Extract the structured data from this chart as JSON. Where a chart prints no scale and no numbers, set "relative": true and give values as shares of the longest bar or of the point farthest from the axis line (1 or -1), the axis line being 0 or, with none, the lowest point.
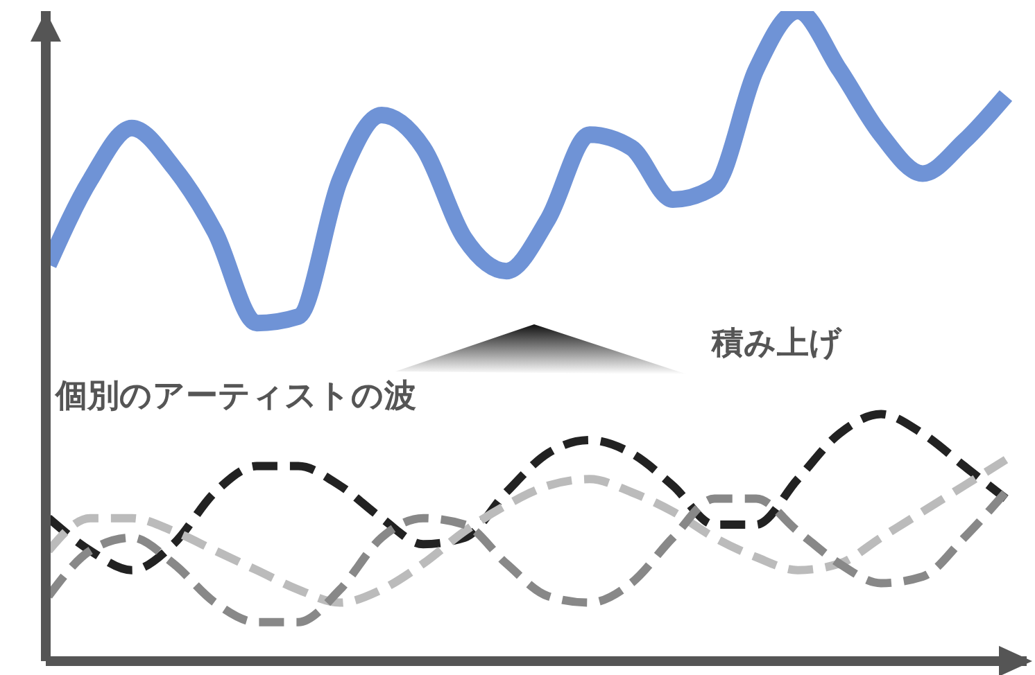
{
  "chart_data": {
    "type": "line",
    "relative": true,
    "categories": [
      null,
      null,
      null,
      null,
      null,
      null,
      null,
      null,
      null,
      null,
      null,
      null,
      null,
      null,
      null,
      null,
      null,
      null,
      null,
      null,
      null,
      null,
      null,
      null
    ],
    "series": [
      {
        "color": "#6f93d6",
        "line_style": "solid",
        "values": [
          0.61,
          0.74,
          0.82,
          0.76,
          0.66,
          0.52,
          0.53,
          0.74,
          0.84,
          0.79,
          0.65,
          0.6,
          0.68,
          0.81,
          0.79,
          0.71,
          0.73,
          0.91,
          1,
          0.91,
          0.81,
          0.75,
          0.8,
          0.87
        ]
      },
      {
        "color": "#222222",
        "line_style": "dashed",
        "values": [
          0.22,
          0.17,
          0.14,
          0.18,
          0.26,
          0.3,
          0.3,
          0.27,
          0.22,
          0.18,
          0.19,
          0.26,
          0.32,
          0.34,
          0.32,
          0.27,
          0.21,
          0.21,
          0.28,
          0.35,
          0.38,
          0.35,
          0.3,
          0.25
        ]
      },
      {
        "color": "#bbbbbb",
        "line_style": "dashed",
        "values": [
          0.17,
          0.22,
          0.22,
          0.2,
          0.17,
          0.14,
          0.11,
          0.09,
          0.11,
          0.15,
          0.2,
          0.24,
          0.27,
          0.28,
          0.26,
          0.23,
          0.19,
          0.16,
          0.14,
          0.15,
          0.19,
          0.23,
          0.27,
          0.31
        ]
      },
      {
        "color": "#888888",
        "line_style": "dashed",
        "values": [
          0.1,
          0.17,
          0.19,
          0.15,
          0.09,
          0.06,
          0.06,
          0.11,
          0.19,
          0.22,
          0.21,
          0.15,
          0.1,
          0.09,
          0.12,
          0.19,
          0.25,
          0.25,
          0.2,
          0.15,
          0.12,
          0.13,
          0.19,
          0.26
        ]
      }
    ],
    "annotations": [
      "個別のアーティストの波",
      "積み上げ"
    ],
    "marker": "none",
    "grid": false,
    "legend": false
  }
}
